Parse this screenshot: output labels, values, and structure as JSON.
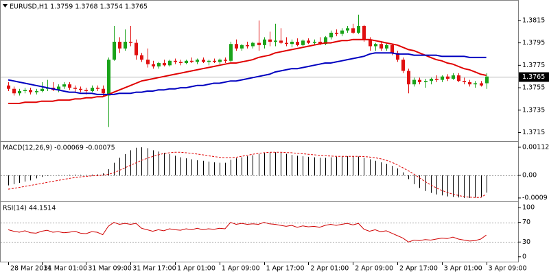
{
  "chart_data": [
    {
      "type": "candlestick",
      "title": "EURUSD,H1 1.3759 1.3768 1.3754 1.3765",
      "categories": [
        "28 Mar 2014",
        null,
        null,
        null,
        null,
        null,
        "31 Mar 01:00",
        null,
        null,
        null,
        null,
        null,
        null,
        null,
        "31 Mar 09:00",
        null,
        null,
        null,
        null,
        null,
        null,
        null,
        "31 Mar 17:00",
        null,
        null,
        null,
        null,
        null,
        null,
        null,
        "1 Apr 01:00",
        null,
        null,
        null,
        null,
        null,
        null,
        null,
        "1 Apr 09:00",
        null,
        null,
        null,
        null,
        null,
        null,
        null,
        "1 Apr 17:00",
        null,
        null,
        null,
        null,
        null,
        null,
        null,
        "2 Apr 01:00",
        null,
        null,
        null,
        null,
        null,
        null,
        null,
        "2 Apr 09:00",
        null,
        null,
        null,
        null,
        null,
        null,
        null,
        "2 Apr 17:00",
        null,
        null,
        null,
        null,
        null,
        null,
        null,
        "3 Apr 01:00",
        null,
        null,
        null,
        null,
        null,
        null,
        null,
        "3 Apr 09:00"
      ],
      "ohlc": [
        [
          1.3757,
          1.376,
          1.3752,
          1.3754
        ],
        [
          1.3754,
          1.3756,
          1.3748,
          1.375
        ],
        [
          1.375,
          1.3754,
          1.3748,
          1.3752
        ],
        [
          1.3752,
          1.3755,
          1.375,
          1.3753
        ],
        [
          1.3753,
          1.3755,
          1.3749,
          1.3751
        ],
        [
          1.3751,
          1.3754,
          1.3749,
          1.3752
        ],
        [
          1.3752,
          1.376,
          1.3751,
          1.3754
        ],
        [
          1.3754,
          1.3762,
          1.3752,
          1.3755
        ],
        [
          1.3755,
          1.376,
          1.3752,
          1.3753
        ],
        [
          1.3753,
          1.3758,
          1.3751,
          1.3756
        ],
        [
          1.3756,
          1.376,
          1.3754,
          1.3758
        ],
        [
          1.3758,
          1.376,
          1.3753,
          1.3755
        ],
        [
          1.3755,
          1.3757,
          1.3751,
          1.3754
        ],
        [
          1.3754,
          1.3756,
          1.3751,
          1.3753
        ],
        [
          1.3753,
          1.3755,
          1.3749,
          1.3752
        ],
        [
          1.3752,
          1.3757,
          1.3751,
          1.3755
        ],
        [
          1.3755,
          1.3757,
          1.3752,
          1.3754
        ],
        [
          1.3754,
          1.3757,
          1.3747,
          1.375
        ],
        [
          1.3748,
          1.3782,
          1.372,
          1.378
        ],
        [
          1.378,
          1.381,
          1.3779,
          1.3796
        ],
        [
          1.3796,
          1.38,
          1.3786,
          1.379
        ],
        [
          1.379,
          1.3807,
          1.3788,
          1.3796
        ],
        [
          1.3796,
          1.381,
          1.3792,
          1.3795
        ],
        [
          1.3795,
          1.3798,
          1.378,
          1.3784
        ],
        [
          1.3784,
          1.3786,
          1.3778,
          1.378
        ],
        [
          1.378,
          1.379,
          1.3773,
          1.3776
        ],
        [
          1.3776,
          1.3779,
          1.3772,
          1.3774
        ],
        [
          1.3774,
          1.3778,
          1.3772,
          1.3777
        ],
        [
          1.3777,
          1.378,
          1.3774,
          1.3775
        ],
        [
          1.3775,
          1.378,
          1.3774,
          1.3779
        ],
        [
          1.3779,
          1.3781,
          1.3776,
          1.3778
        ],
        [
          1.3778,
          1.378,
          1.3775,
          1.3777
        ],
        [
          1.3777,
          1.378,
          1.3776,
          1.3779
        ],
        [
          1.3779,
          1.3782,
          1.3777,
          1.3778
        ],
        [
          1.3778,
          1.3781,
          1.3776,
          1.378
        ],
        [
          1.378,
          1.3782,
          1.3777,
          1.3778
        ],
        [
          1.3778,
          1.378,
          1.3775,
          1.3779
        ],
        [
          1.3779,
          1.3781,
          1.3777,
          1.3778
        ],
        [
          1.3778,
          1.3781,
          1.3776,
          1.378
        ],
        [
          1.378,
          1.3782,
          1.3777,
          1.3779
        ],
        [
          1.3779,
          1.3796,
          1.3778,
          1.3794
        ],
        [
          1.3794,
          1.3798,
          1.3788,
          1.379
        ],
        [
          1.379,
          1.3794,
          1.3788,
          1.3793
        ],
        [
          1.3793,
          1.3796,
          1.379,
          1.3792
        ],
        [
          1.3792,
          1.3796,
          1.379,
          1.3795
        ],
        [
          1.3795,
          1.3815,
          1.3788,
          1.3793
        ],
        [
          1.3793,
          1.38,
          1.379,
          1.3798
        ],
        [
          1.3798,
          1.3805,
          1.3792,
          1.3796
        ],
        [
          1.3796,
          1.3812,
          1.3792,
          1.3797
        ],
        [
          1.3797,
          1.3808,
          1.3794,
          1.3795
        ],
        [
          1.3795,
          1.38,
          1.3792,
          1.3794
        ],
        [
          1.3794,
          1.3798,
          1.3791,
          1.3796
        ],
        [
          1.3796,
          1.3799,
          1.3792,
          1.3793
        ],
        [
          1.3793,
          1.3798,
          1.3792,
          1.3797
        ],
        [
          1.3797,
          1.3799,
          1.3794,
          1.3795
        ],
        [
          1.3795,
          1.3798,
          1.3793,
          1.3796
        ],
        [
          1.3796,
          1.38,
          1.3793,
          1.3794
        ],
        [
          1.3794,
          1.3801,
          1.3793,
          1.38
        ],
        [
          1.38,
          1.3806,
          1.3798,
          1.3804
        ],
        [
          1.3804,
          1.3807,
          1.3801,
          1.3803
        ],
        [
          1.3803,
          1.3808,
          1.3801,
          1.3806
        ],
        [
          1.3806,
          1.381,
          1.3804,
          1.3808
        ],
        [
          1.3808,
          1.3812,
          1.3803,
          1.3804
        ],
        [
          1.3804,
          1.382,
          1.3803,
          1.381
        ],
        [
          1.381,
          1.3811,
          1.3796,
          1.3798
        ],
        [
          1.3798,
          1.38,
          1.3788,
          1.3792
        ],
        [
          1.3792,
          1.3795,
          1.3788,
          1.3794
        ],
        [
          1.3794,
          1.3796,
          1.3788,
          1.379
        ],
        [
          1.379,
          1.3795,
          1.3788,
          1.3793
        ],
        [
          1.3793,
          1.3794,
          1.3784,
          1.3786
        ],
        [
          1.3786,
          1.3788,
          1.3778,
          1.378
        ],
        [
          1.378,
          1.3782,
          1.3768,
          1.377
        ],
        [
          1.377,
          1.3772,
          1.375,
          1.3758
        ],
        [
          1.3758,
          1.3764,
          1.3756,
          1.3762
        ],
        [
          1.3762,
          1.3764,
          1.3758,
          1.376
        ],
        [
          1.376,
          1.3763,
          1.3755,
          1.3761
        ],
        [
          1.3761,
          1.3764,
          1.3758,
          1.3763
        ],
        [
          1.3763,
          1.3766,
          1.376,
          1.3762
        ],
        [
          1.3762,
          1.3766,
          1.376,
          1.3765
        ],
        [
          1.3765,
          1.3767,
          1.3761,
          1.3763
        ],
        [
          1.3763,
          1.3768,
          1.3762,
          1.3766
        ],
        [
          1.3766,
          1.3768,
          1.376,
          1.3761
        ],
        [
          1.3761,
          1.3764,
          1.3758,
          1.376
        ],
        [
          1.376,
          1.3762,
          1.3756,
          1.3758
        ],
        [
          1.3758,
          1.3761,
          1.3755,
          1.3759
        ],
        [
          1.3759,
          1.3761,
          1.3756,
          1.3757
        ],
        [
          1.3759,
          1.3768,
          1.3754,
          1.3765
        ]
      ],
      "up_color": "#1aa31a",
      "down_color": "#e01010",
      "series": [
        {
          "color": "#e00000",
          "values": [
            1.3741,
            1.3741,
            1.3741,
            1.3742,
            1.3742,
            1.3742,
            1.3743,
            1.3743,
            1.3743,
            1.3744,
            1.3744,
            1.3744,
            1.3745,
            1.3745,
            1.3746,
            1.3746,
            1.3747,
            1.3747,
            1.3749,
            1.3751,
            1.3753,
            1.3755,
            1.3757,
            1.3759,
            1.3761,
            1.3762,
            1.3763,
            1.3764,
            1.3765,
            1.3766,
            1.3767,
            1.3768,
            1.3769,
            1.377,
            1.3771,
            1.3772,
            1.3773,
            1.3774,
            1.3775,
            1.3776,
            1.3777,
            1.3777,
            1.3778,
            1.3779,
            1.378,
            1.3782,
            1.3783,
            1.3784,
            1.3786,
            1.3787,
            1.3788,
            1.3789,
            1.379,
            1.3791,
            1.3792,
            1.3793,
            1.3794,
            1.3795,
            1.3795,
            1.3796,
            1.3797,
            1.3797,
            1.3798,
            1.3798,
            1.3798,
            1.3798,
            1.3797,
            1.3796,
            1.3795,
            1.3794,
            1.3793,
            1.3791,
            1.3789,
            1.3788,
            1.3786,
            1.3784,
            1.3782,
            1.378,
            1.3779,
            1.3777,
            1.3776,
            1.3774,
            1.3772,
            1.3771,
            1.3769,
            1.3767,
            1.3766
          ]
        },
        {
          "color": "#0000c0",
          "values": [
            1.3762,
            1.3761,
            1.376,
            1.3759,
            1.3758,
            1.3757,
            1.3756,
            1.3755,
            1.3754,
            1.3753,
            1.3752,
            1.3751,
            1.3751,
            1.375,
            1.375,
            1.375,
            1.3749,
            1.3749,
            1.3749,
            1.3749,
            1.375,
            1.375,
            1.375,
            1.3751,
            1.3751,
            1.3752,
            1.3752,
            1.3753,
            1.3753,
            1.3754,
            1.3754,
            1.3755,
            1.3755,
            1.3756,
            1.3757,
            1.3757,
            1.3758,
            1.3759,
            1.3759,
            1.376,
            1.3761,
            1.3761,
            1.3762,
            1.3763,
            1.3764,
            1.3765,
            1.3766,
            1.3767,
            1.3769,
            1.377,
            1.3771,
            1.3772,
            1.3772,
            1.3773,
            1.3774,
            1.3775,
            1.3776,
            1.3777,
            1.3777,
            1.3778,
            1.3779,
            1.378,
            1.3781,
            1.3782,
            1.3783,
            1.3785,
            1.3786,
            1.3786,
            1.3786,
            1.3786,
            1.3785,
            1.3785,
            1.3785,
            1.3784,
            1.3784,
            1.3784,
            1.3784,
            1.3784,
            1.3783,
            1.3783,
            1.3783,
            1.3783,
            1.3783,
            1.3782,
            1.3782,
            1.3782,
            1.3782
          ]
        }
      ],
      "ylim": [
        1.3708,
        1.3832
      ],
      "yticks": [
        1.3815,
        1.3795,
        1.3775,
        1.3755,
        1.3735,
        1.3715
      ],
      "current_price": 1.3765
    },
    {
      "type": "macd",
      "title": "MACD(12,26,9) -0.00069 -0.00075",
      "histogram": {
        "color": "#000000",
        "values": [
          -0.0004,
          -0.00035,
          -0.0003,
          -0.00025,
          -0.0002,
          -0.00012,
          -6e-05,
          -2e-05,
          0,
          1e-05,
          1e-05,
          2e-05,
          3e-05,
          2e-05,
          2e-05,
          3e-05,
          4e-05,
          8e-05,
          0.00025,
          0.0005,
          0.0007,
          0.00085,
          0.001,
          0.0011,
          0.00112,
          0.00108,
          0.001,
          0.00095,
          0.0009,
          0.00085,
          0.00078,
          0.00072,
          0.00068,
          0.00064,
          0.0006,
          0.00058,
          0.00055,
          0.00052,
          0.0005,
          0.0005,
          0.00062,
          0.00068,
          0.00072,
          0.00076,
          0.0008,
          0.00085,
          0.0009,
          0.00092,
          0.00092,
          0.0009,
          0.00086,
          0.00082,
          0.00078,
          0.00076,
          0.00074,
          0.00072,
          0.0007,
          0.0007,
          0.00072,
          0.00074,
          0.00075,
          0.00076,
          0.00076,
          0.00075,
          0.0007,
          0.00064,
          0.00058,
          0.00052,
          0.00046,
          0.00038,
          0.00028,
          0.00012,
          -0.00015,
          -0.00035,
          -0.0005,
          -0.00062,
          -0.0007,
          -0.00076,
          -0.0008,
          -0.00084,
          -0.00086,
          -0.00088,
          -0.0009,
          -0.0009,
          -0.00089,
          -0.00088,
          -0.00069
        ]
      },
      "signal": {
        "color": "#e00000",
        "values": [
          -0.00055,
          -0.00052,
          -0.00048,
          -0.00044,
          -0.0004,
          -0.00036,
          -0.00032,
          -0.00028,
          -0.00024,
          -0.0002,
          -0.00016,
          -0.00012,
          -9e-05,
          -6e-05,
          -4e-05,
          -2e-05,
          -1e-05,
          1e-05,
          4e-05,
          0.0001,
          0.0002,
          0.0003,
          0.0004,
          0.0005,
          0.0006,
          0.00068,
          0.00075,
          0.00082,
          0.00087,
          0.0009,
          0.00092,
          0.00092,
          0.0009,
          0.00088,
          0.00085,
          0.00082,
          0.00078,
          0.00075,
          0.00072,
          0.0007,
          0.0007,
          0.00072,
          0.00076,
          0.0008,
          0.00084,
          0.00088,
          0.0009,
          0.00092,
          0.00092,
          0.00092,
          0.00091,
          0.0009,
          0.00088,
          0.00086,
          0.00084,
          0.00082,
          0.0008,
          0.00078,
          0.00077,
          0.00076,
          0.00076,
          0.00076,
          0.00076,
          0.00076,
          0.00075,
          0.00073,
          0.0007,
          0.00066,
          0.0006,
          0.00052,
          0.00042,
          0.0003,
          0.00018,
          5e-05,
          -0.0001,
          -0.00025,
          -0.00038,
          -0.0005,
          -0.0006,
          -0.00068,
          -0.00075,
          -0.0008,
          -0.00085,
          -0.00087,
          -0.00088,
          -0.00088,
          -0.00075
        ]
      },
      "ylim": [
        -0.00101,
        0.00131
      ],
      "yticks": [
        0.00112,
        {
          "value": 0,
          "label": "0.00"
        },
        -0.0009
      ],
      "levels": [
        0
      ]
    },
    {
      "type": "rsi",
      "title": "RSI(14) 44.1514",
      "color": "#d00000",
      "values": [
        55,
        52,
        50,
        53,
        49,
        48,
        52,
        54,
        50,
        51,
        49,
        50,
        52,
        48,
        47,
        51,
        50,
        45,
        62,
        70,
        66,
        68,
        66,
        68,
        58,
        55,
        52,
        55,
        53,
        57,
        55,
        54,
        57,
        55,
        58,
        55,
        57,
        56,
        58,
        57,
        70,
        66,
        68,
        66,
        67,
        66,
        70,
        67,
        66,
        64,
        62,
        64,
        60,
        63,
        61,
        62,
        60,
        64,
        66,
        64,
        66,
        68,
        65,
        68,
        56,
        52,
        55,
        51,
        53,
        48,
        43,
        38,
        30,
        34,
        33,
        35,
        34,
        36,
        38,
        37,
        40,
        36,
        34,
        32,
        33,
        36,
        44.1514
      ],
      "ylim": [
        -10,
        110
      ],
      "yticks": [
        100,
        70,
        30,
        0
      ],
      "levels": [
        70,
        30
      ]
    }
  ]
}
